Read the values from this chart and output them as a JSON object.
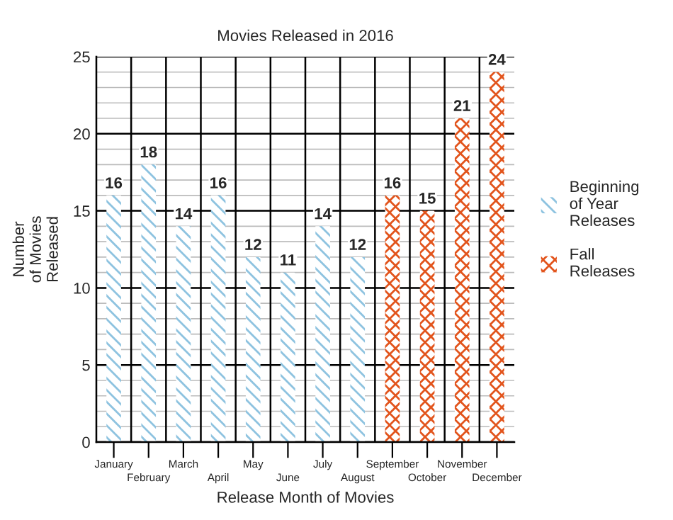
{
  "chart_data": {
    "type": "bar",
    "title": "Movies Released in 2016",
    "xlabel": "Release Month of Movies",
    "ylabel": "Number\nof Movies\nReleased",
    "categories": [
      "January",
      "February",
      "March",
      "April",
      "May",
      "June",
      "July",
      "August",
      "September",
      "October",
      "November",
      "December"
    ],
    "series": [
      {
        "name": "Beginning\nof Year\nReleases",
        "color": "#8ec3e0",
        "values": [
          16,
          18,
          14,
          16,
          12,
          11,
          14,
          12,
          null,
          null,
          null,
          null
        ]
      },
      {
        "name": "Fall\nReleases",
        "color": "#e2541c",
        "values": [
          null,
          null,
          null,
          null,
          null,
          null,
          null,
          null,
          16,
          15,
          21,
          24
        ]
      }
    ],
    "ylim": [
      0,
      25
    ],
    "yticks": [
      0,
      5,
      10,
      15,
      20,
      25
    ],
    "grid": true,
    "legend": "right",
    "data_labels": true
  }
}
